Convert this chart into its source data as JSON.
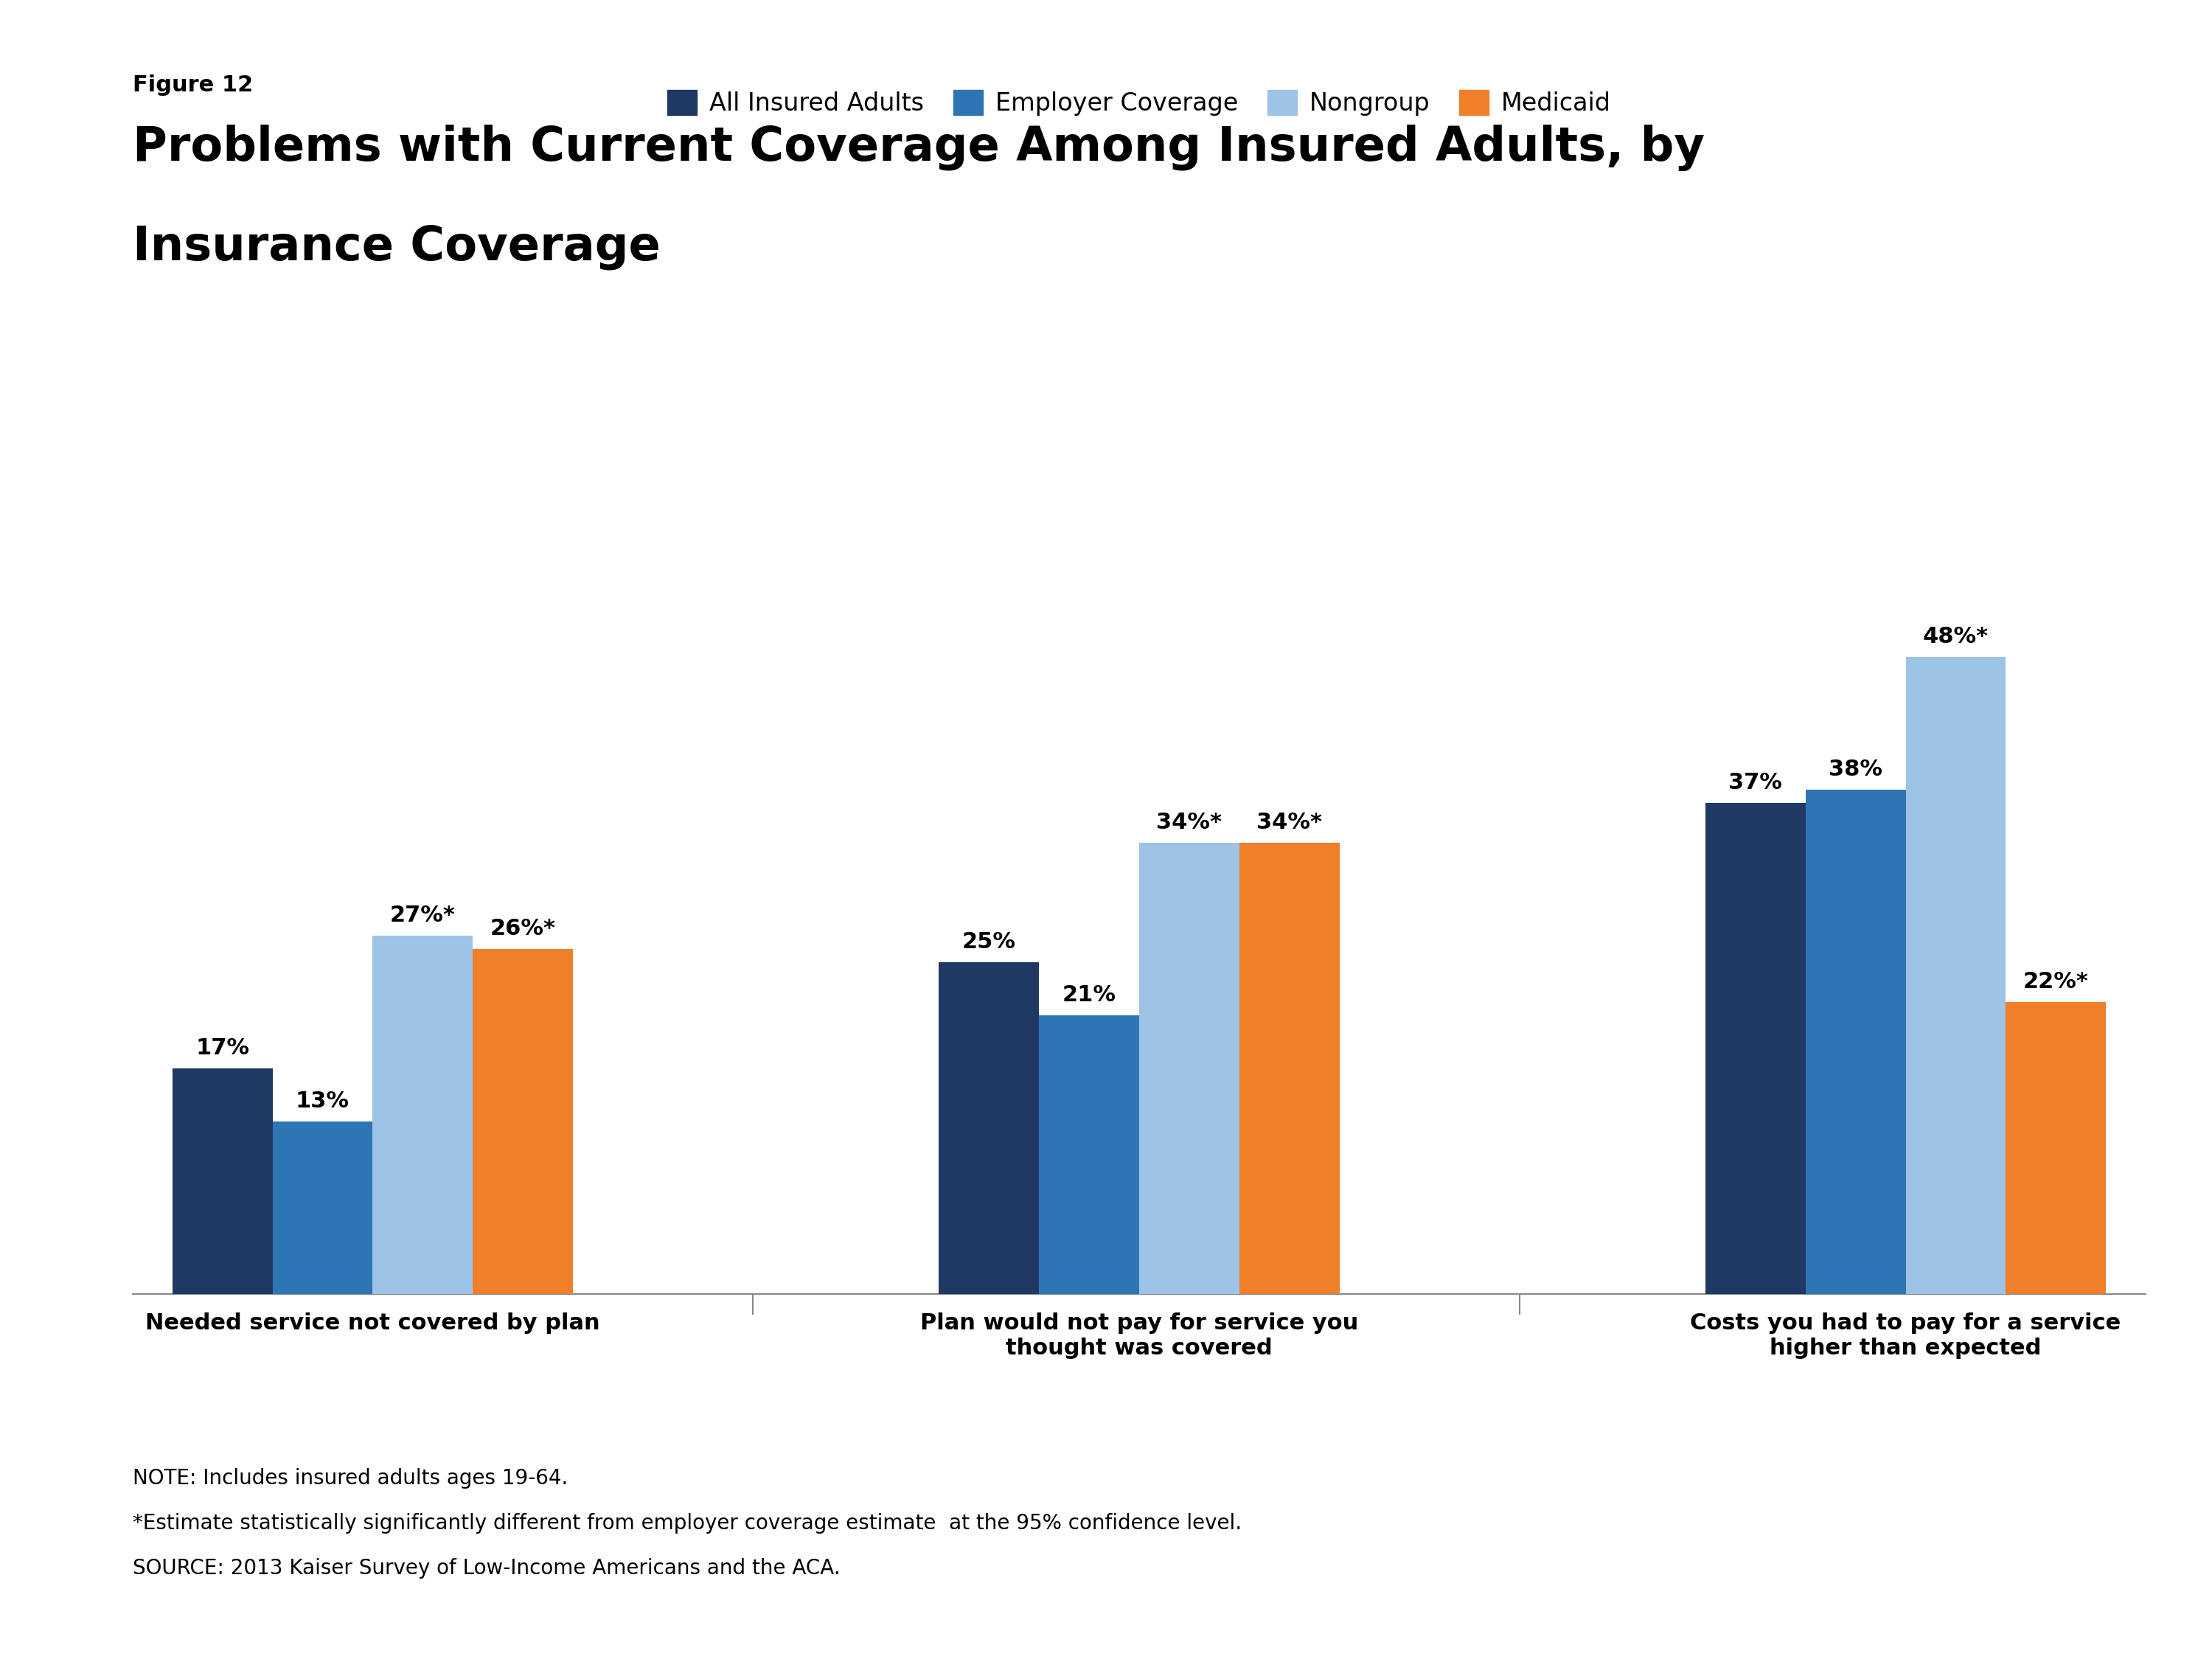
{
  "figure_label": "Figure 12",
  "title_line1": "Problems with Current Coverage Among Insured Adults, by",
  "title_line2": "Insurance Coverage",
  "categories": [
    "Needed service not covered by plan",
    "Plan would not pay for service you\nthought was covered",
    "Costs you had to pay for a service\nhigher than expected"
  ],
  "series": {
    "All Insured Adults": [
      17,
      25,
      37
    ],
    "Employer Coverage": [
      13,
      21,
      38
    ],
    "Nongroup": [
      27,
      34,
      48
    ],
    "Medicaid": [
      26,
      34,
      22
    ]
  },
  "labels": {
    "All Insured Adults": [
      "17%",
      "25%",
      "37%"
    ],
    "Employer Coverage": [
      "13%",
      "21%",
      "38%"
    ],
    "Nongroup": [
      "27%*",
      "34%*",
      "48%*"
    ],
    "Medicaid": [
      "26%*",
      "34%*",
      "22%*"
    ]
  },
  "colors": {
    "All Insured Adults": "#1f3864",
    "Employer Coverage": "#2e75b6",
    "Nongroup": "#9dc3e6",
    "Medicaid": "#f07f2a"
  },
  "legend_order": [
    "All Insured Adults",
    "Employer Coverage",
    "Nongroup",
    "Medicaid"
  ],
  "ylim": [
    0,
    55
  ],
  "note_line1": "NOTE: Includes insured adults ages 19-64.",
  "note_line2": "*Estimate statistically significantly different from employer coverage estimate  at the 95% confidence level.",
  "note_line3": "SOURCE: 2013 Kaiser Survey of Low-Income Americans and the ACA.",
  "background_color": "#ffffff",
  "bar_width": 0.17,
  "group_centers": [
    0.0,
    1.3,
    2.6
  ]
}
